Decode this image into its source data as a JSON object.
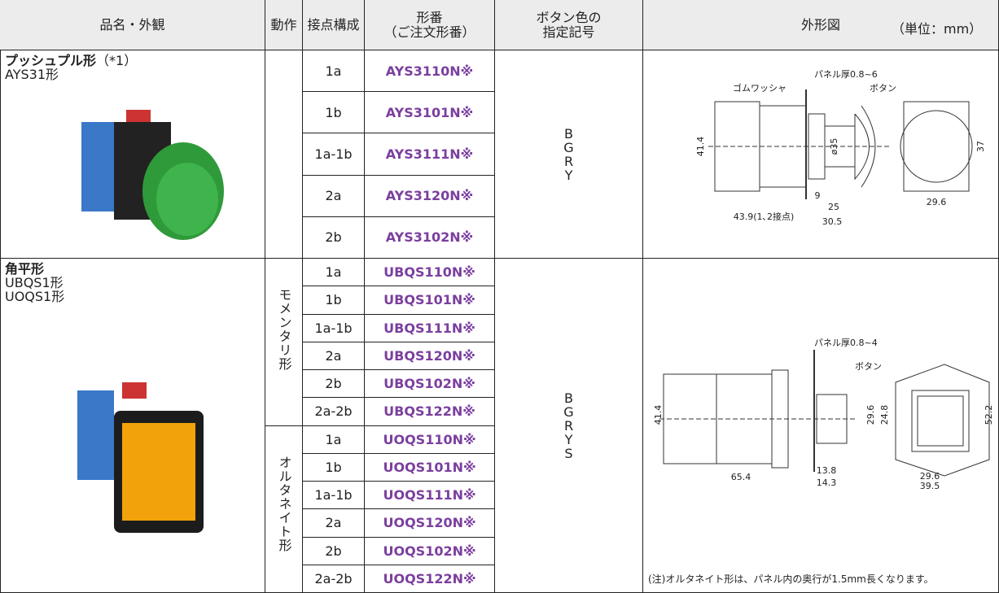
{
  "header": {
    "columns": [
      {
        "lines": [
          "品名・外観"
        ]
      },
      {
        "lines": [
          "動作"
        ]
      },
      {
        "lines": [
          "接点構成"
        ]
      },
      {
        "lines": [
          "形番",
          "（ご注文形番）"
        ]
      },
      {
        "lines": [
          "ボタン色の",
          "指定記号"
        ]
      },
      {
        "lines": [
          "外形図"
        ]
      }
    ],
    "unit": "（単位：mm）"
  },
  "groups": [
    {
      "name": "プッシュプル形",
      "note": "（*1）",
      "models": [
        "AYS31形"
      ],
      "colors": [
        "B",
        "G",
        "R",
        "Y"
      ],
      "rows": [
        {
          "contact": "1a",
          "part": "AYS3110N※"
        },
        {
          "contact": "1b",
          "part": "AYS3101N※"
        },
        {
          "contact": "1a-1b",
          "part": "AYS3111N※"
        },
        {
          "contact": "2a",
          "part": "AYS3120N※"
        },
        {
          "contact": "2b",
          "part": "AYS3102N※"
        }
      ],
      "drawing": {
        "labels": [
          "パネル厚0.8~6",
          "ゴムワッシャ",
          "ボタン",
          "41.4",
          "ø35",
          "37",
          "9",
          "25",
          "43.9(1､2接点)",
          "30.5",
          "29.6"
        ]
      }
    },
    {
      "name": "角平形",
      "models": [
        "UBQS1形",
        "UOQS1形"
      ],
      "colors": [
        "B",
        "G",
        "R",
        "Y",
        "S"
      ],
      "actions": [
        {
          "label": "モメンタリ形",
          "rows": [
            {
              "contact": "1a",
              "part": "UBQS110N※"
            },
            {
              "contact": "1b",
              "part": "UBQS101N※"
            },
            {
              "contact": "1a-1b",
              "part": "UBQS111N※"
            },
            {
              "contact": "2a",
              "part": "UBQS120N※"
            },
            {
              "contact": "2b",
              "part": "UBQS102N※"
            },
            {
              "contact": "2a-2b",
              "part": "UBQS122N※"
            }
          ]
        },
        {
          "label": "オルタネイト形",
          "rows": [
            {
              "contact": "1a",
              "part": "UOQS110N※"
            },
            {
              "contact": "1b",
              "part": "UOQS101N※"
            },
            {
              "contact": "1a-1b",
              "part": "UOQS111N※"
            },
            {
              "contact": "2a",
              "part": "UOQS120N※"
            },
            {
              "contact": "2b",
              "part": "UOQS102N※"
            },
            {
              "contact": "2a-2b",
              "part": "UOQS122N※"
            }
          ]
        }
      ],
      "drawing": {
        "labels": [
          "パネル厚0.8~4",
          "ボタン",
          "41.4",
          "29.6",
          "24.8",
          "52.2",
          "13.8",
          "14.3",
          "65.4",
          "29.6",
          "39.5"
        ],
        "note": "(注)オルタネイト形は、パネル内の奥行が1.5mm長くなります。"
      }
    }
  ]
}
